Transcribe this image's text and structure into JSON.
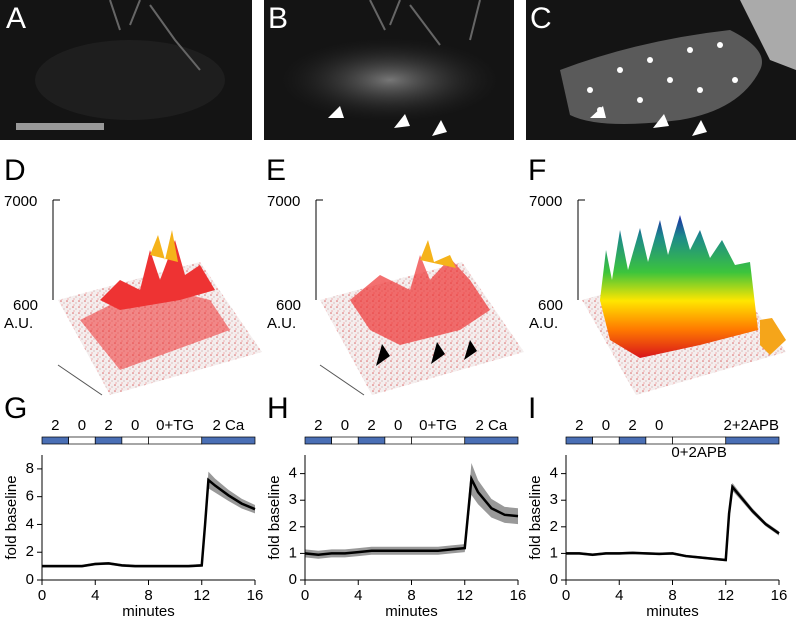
{
  "panels": {
    "labels": [
      "A",
      "B",
      "C",
      "D",
      "E",
      "F",
      "G",
      "H",
      "I"
    ]
  },
  "surfaces": [
    {
      "ymax": "7000",
      "ymin": "600",
      "unit": "A.U."
    },
    {
      "ymax": "7000",
      "ymin": "600",
      "unit": "A.U."
    },
    {
      "ymax": "7000",
      "ymin": "600",
      "unit": "A.U."
    }
  ],
  "chart_data": [
    {
      "type": "line",
      "xlabel": "minutes",
      "ylabel": "fold baseline",
      "x": [
        0,
        1,
        2,
        3,
        4,
        5,
        6,
        7,
        8,
        9,
        10,
        11,
        12,
        12.25,
        12.5,
        13,
        14,
        15,
        16
      ],
      "values": [
        1,
        1,
        1,
        1,
        1.15,
        1.2,
        1.05,
        1,
        1,
        1,
        1,
        1,
        1.05,
        4,
        7.2,
        6.8,
        6.1,
        5.5,
        5.1
      ],
      "errors": [
        0.1,
        0.1,
        0.1,
        0.1,
        0.1,
        0.1,
        0.1,
        0.1,
        0.1,
        0.1,
        0.1,
        0.1,
        0.1,
        0.4,
        0.6,
        0.5,
        0.4,
        0.35,
        0.3
      ],
      "color": "#000000",
      "band_color": "#999999",
      "xlim": [
        0,
        16
      ],
      "xticks": [
        0,
        4,
        8,
        12,
        16
      ],
      "ylim": [
        0,
        9
      ],
      "yticks": [
        0,
        2,
        4,
        6,
        8
      ],
      "protocol": [
        {
          "label": "2",
          "start": 0,
          "end": 2,
          "color": "#4a6fb5"
        },
        {
          "label": "0",
          "start": 2,
          "end": 4,
          "color": "#ffffff"
        },
        {
          "label": "2",
          "start": 4,
          "end": 6,
          "color": "#4a6fb5"
        },
        {
          "label": "0",
          "start": 6,
          "end": 8,
          "color": "#ffffff"
        },
        {
          "label": "0+TG",
          "start": 8,
          "end": 12,
          "color": "#ffffff"
        },
        {
          "label": "2 Ca",
          "start": 12,
          "end": 16,
          "color": "#4a6fb5"
        }
      ]
    },
    {
      "type": "line",
      "xlabel": "minutes",
      "ylabel": "fold baseline",
      "x": [
        0,
        1,
        2,
        3,
        4,
        5,
        6,
        7,
        8,
        9,
        10,
        11,
        12,
        12.25,
        12.5,
        13,
        14,
        15,
        16
      ],
      "values": [
        1,
        0.95,
        1,
        1,
        1.05,
        1.1,
        1.1,
        1.1,
        1.1,
        1.1,
        1.1,
        1.15,
        1.2,
        2.5,
        3.8,
        3.3,
        2.7,
        2.45,
        2.4
      ],
      "errors": [
        0.15,
        0.15,
        0.15,
        0.15,
        0.15,
        0.15,
        0.15,
        0.15,
        0.15,
        0.15,
        0.15,
        0.15,
        0.15,
        0.4,
        0.6,
        0.45,
        0.35,
        0.3,
        0.3
      ],
      "color": "#000000",
      "band_color": "#999999",
      "xlim": [
        0,
        16
      ],
      "xticks": [
        0,
        4,
        8,
        12,
        16
      ],
      "ylim": [
        0,
        4.7
      ],
      "yticks": [
        0,
        1,
        2,
        3,
        4
      ],
      "protocol": [
        {
          "label": "2",
          "start": 0,
          "end": 2,
          "color": "#4a6fb5"
        },
        {
          "label": "0",
          "start": 2,
          "end": 4,
          "color": "#ffffff"
        },
        {
          "label": "2",
          "start": 4,
          "end": 6,
          "color": "#4a6fb5"
        },
        {
          "label": "0",
          "start": 6,
          "end": 8,
          "color": "#ffffff"
        },
        {
          "label": "0+TG",
          "start": 8,
          "end": 12,
          "color": "#ffffff"
        },
        {
          "label": "2 Ca",
          "start": 12,
          "end": 16,
          "color": "#4a6fb5"
        }
      ]
    },
    {
      "type": "line",
      "xlabel": "minutes",
      "ylabel": "fold baseline",
      "x": [
        0,
        1,
        2,
        3,
        4,
        5,
        6,
        7,
        8,
        9,
        10,
        11,
        12,
        12.25,
        12.5,
        13,
        14,
        15,
        16
      ],
      "values": [
        1,
        1,
        0.95,
        1,
        1,
        1.02,
        1,
        0.98,
        1,
        0.9,
        0.85,
        0.8,
        0.75,
        2.5,
        3.5,
        3.2,
        2.6,
        2.1,
        1.75
      ],
      "errors": [
        0.05,
        0.05,
        0.05,
        0.05,
        0.05,
        0.05,
        0.05,
        0.05,
        0.05,
        0.05,
        0.05,
        0.05,
        0.05,
        0.15,
        0.15,
        0.12,
        0.1,
        0.08,
        0.08
      ],
      "color": "#000000",
      "band_color": "#999999",
      "xlim": [
        0,
        16
      ],
      "xticks": [
        0,
        4,
        8,
        12,
        16
      ],
      "ylim": [
        0,
        4.7
      ],
      "yticks": [
        0,
        1,
        2,
        3,
        4
      ],
      "protocol": [
        {
          "label": "2",
          "start": 0,
          "end": 2,
          "color": "#4a6fb5"
        },
        {
          "label": "0",
          "start": 2,
          "end": 4,
          "color": "#ffffff"
        },
        {
          "label": "2",
          "start": 4,
          "end": 6,
          "color": "#4a6fb5"
        },
        {
          "label": "0",
          "start": 6,
          "end": 8,
          "color": "#ffffff"
        },
        {
          "label": "0+2APB",
          "start": 8,
          "end": 12,
          "color": "#ffffff",
          "label_position": "below"
        },
        {
          "label": "2+2APB",
          "start": 12,
          "end": 16,
          "color": "#4a6fb5",
          "label_position": "right"
        }
      ]
    }
  ]
}
